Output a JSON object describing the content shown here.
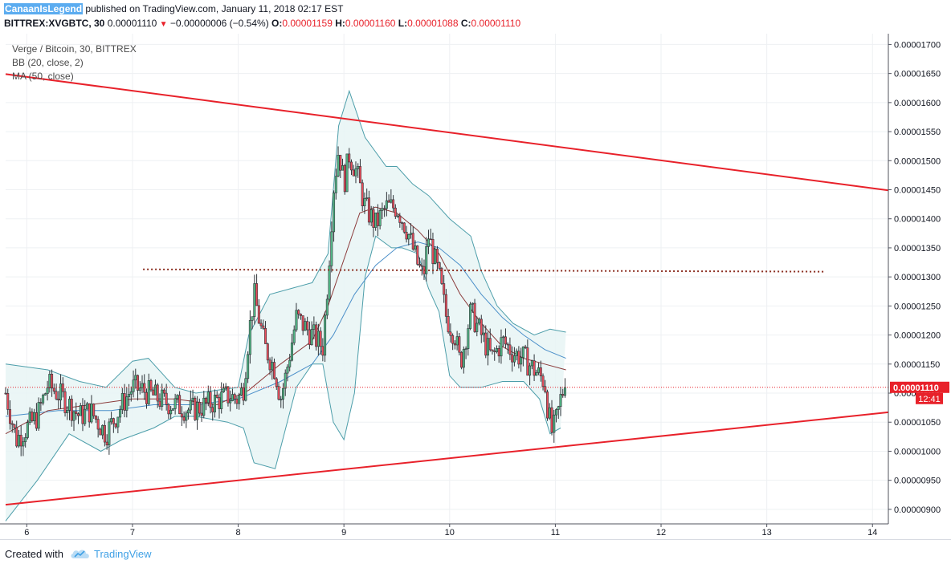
{
  "header": {
    "author": "CanaanIsLegend",
    "published": "published on TradingView.com, January 11, 2018 02:17 EST",
    "symbol": "BITTREX:XVGBTC, 30",
    "last": "0.00001110",
    "change_arrow": "▼",
    "change": "−0.00000006 (−0.54%)",
    "o_label": "O:",
    "o": "0.00001159",
    "h_label": "H:",
    "h": "0.00001160",
    "l_label": "L:",
    "l": "0.00001088",
    "c_label": "C:",
    "c": "0.00001110"
  },
  "legend": {
    "title": "Verge / Bitcoin, 30, BITTREX",
    "bb": "BB (20, close, 2)",
    "ma": "MA (50, close)"
  },
  "footer": {
    "created_with": "Created with",
    "brand": "TradingView",
    "brand_icon": "tradingview-cloud-icon"
  },
  "chart_data": {
    "type": "candlestick",
    "symbol": "BITTREX:XVGBTC",
    "interval": "30",
    "x_ticks": [
      "6",
      "7",
      "8",
      "9",
      "10",
      "11",
      "12",
      "13",
      "14"
    ],
    "x_range": [
      5.8,
      14.15
    ],
    "y_ticks": [
      "0.00000900",
      "0.00000950",
      "0.00001000",
      "0.00001050",
      "0.00001100",
      "0.00001150",
      "0.00001200",
      "0.00001250",
      "0.00001300",
      "0.00001350",
      "0.00001400",
      "0.00001450",
      "0.00001500",
      "0.00001550",
      "0.00001600",
      "0.00001650",
      "0.00001700"
    ],
    "y_range": [
      8.75e-06,
      1.713e-05
    ],
    "last_price_label": "0.00001110",
    "last_price": 1.11e-05,
    "countdown_label": "12:41",
    "colors": {
      "up": "#53b987",
      "down": "#eb4d5c",
      "bb_fill": "#e8f4f4",
      "bb_band": "#4d9eaa",
      "bb_basis": "#8b3a3a",
      "ma": "#4b8fc9",
      "trend": "#e8212a",
      "level": "#8b2e20"
    },
    "anchors": [
      [
        5.8,
        1.1e-05
      ],
      [
        5.9,
        1.02e-05
      ],
      [
        6.0,
        1.04e-05
      ],
      [
        6.1,
        1.06e-05
      ],
      [
        6.2,
        1.115e-05
      ],
      [
        6.35,
        1.09e-05
      ],
      [
        6.5,
        1.06e-05
      ],
      [
        6.6,
        1.07e-05
      ],
      [
        6.75,
        1.03e-05
      ],
      [
        6.9,
        1.08e-05
      ],
      [
        7.0,
        1.11e-05
      ],
      [
        7.1,
        1.105e-05
      ],
      [
        7.3,
        1.085e-05
      ],
      [
        7.4,
        1.08e-05
      ],
      [
        7.55,
        1.07e-05
      ],
      [
        7.7,
        1.08e-05
      ],
      [
        7.9,
        1.095e-05
      ],
      [
        8.0,
        1.09e-05
      ],
      [
        8.05,
        1.11e-05
      ],
      [
        8.1,
        1.2e-05
      ],
      [
        8.15,
        1.27e-05
      ],
      [
        8.25,
        1.18e-05
      ],
      [
        8.35,
        1.14e-05
      ],
      [
        8.4,
        1.09e-05
      ],
      [
        8.45,
        1.13e-05
      ],
      [
        8.55,
        1.23e-05
      ],
      [
        8.65,
        1.21e-05
      ],
      [
        8.75,
        1.19e-05
      ],
      [
        8.8,
        1.18e-05
      ],
      [
        8.85,
        1.3e-05
      ],
      [
        8.9,
        1.45e-05
      ],
      [
        8.95,
        1.52e-05
      ],
      [
        9.0,
        1.46e-05
      ],
      [
        9.05,
        1.51e-05
      ],
      [
        9.12,
        1.48e-05
      ],
      [
        9.2,
        1.42e-05
      ],
      [
        9.3,
        1.39e-05
      ],
      [
        9.4,
        1.42e-05
      ],
      [
        9.5,
        1.42e-05
      ],
      [
        9.6,
        1.38e-05
      ],
      [
        9.7,
        1.32e-05
      ],
      [
        9.75,
        1.3e-05
      ],
      [
        9.8,
        1.37e-05
      ],
      [
        9.9,
        1.3e-05
      ],
      [
        9.97,
        1.23e-05
      ],
      [
        10.05,
        1.2e-05
      ],
      [
        10.1,
        1.15e-05
      ],
      [
        10.2,
        1.24e-05
      ],
      [
        10.3,
        1.2e-05
      ],
      [
        10.4,
        1.16e-05
      ],
      [
        10.5,
        1.19e-05
      ],
      [
        10.6,
        1.17e-05
      ],
      [
        10.7,
        1.16e-05
      ],
      [
        10.8,
        1.14e-05
      ],
      [
        10.9,
        1.12e-05
      ],
      [
        10.93,
        1.07e-05
      ],
      [
        10.97,
        1.03e-05
      ],
      [
        11.02,
        1.06e-05
      ],
      [
        11.06,
        1.1e-05
      ],
      [
        11.1,
        1.11e-05
      ]
    ],
    "bb_upper": [
      [
        5.8,
        1.15e-05
      ],
      [
        6.2,
        1.14e-05
      ],
      [
        6.5,
        1.12e-05
      ],
      [
        6.75,
        1.11e-05
      ],
      [
        7.0,
        1.155e-05
      ],
      [
        7.15,
        1.16e-05
      ],
      [
        7.4,
        1.11e-05
      ],
      [
        7.6,
        1.1e-05
      ],
      [
        8.0,
        1.11e-05
      ],
      [
        8.1,
        1.2e-05
      ],
      [
        8.3,
        1.27e-05
      ],
      [
        8.5,
        1.28e-05
      ],
      [
        8.7,
        1.29e-05
      ],
      [
        8.85,
        1.34e-05
      ],
      [
        8.95,
        1.56e-05
      ],
      [
        9.05,
        1.62e-05
      ],
      [
        9.2,
        1.54e-05
      ],
      [
        9.4,
        1.49e-05
      ],
      [
        9.5,
        1.49e-05
      ],
      [
        9.65,
        1.46e-05
      ],
      [
        9.8,
        1.44e-05
      ],
      [
        10.0,
        1.4e-05
      ],
      [
        10.2,
        1.37e-05
      ],
      [
        10.3,
        1.31e-05
      ],
      [
        10.45,
        1.25e-05
      ],
      [
        10.6,
        1.22e-05
      ],
      [
        10.8,
        1.2e-05
      ],
      [
        10.95,
        1.21e-05
      ],
      [
        11.1,
        1.205e-05
      ]
    ],
    "bb_lower": [
      [
        5.8,
        8.8e-06
      ],
      [
        6.1,
        9.5e-06
      ],
      [
        6.4,
        1.03e-05
      ],
      [
        6.7,
        1e-05
      ],
      [
        6.9,
        1.02e-05
      ],
      [
        7.2,
        1.04e-05
      ],
      [
        7.4,
        1.06e-05
      ],
      [
        7.6,
        1.06e-05
      ],
      [
        7.9,
        1.05e-05
      ],
      [
        8.05,
        1.04e-05
      ],
      [
        8.15,
        9.8e-06
      ],
      [
        8.35,
        9.7e-06
      ],
      [
        8.55,
        1.11e-05
      ],
      [
        8.7,
        1.15e-05
      ],
      [
        8.8,
        1.15e-05
      ],
      [
        8.9,
        1.05e-05
      ],
      [
        9.0,
        1.02e-05
      ],
      [
        9.1,
        1.1e-05
      ],
      [
        9.2,
        1.3e-05
      ],
      [
        9.3,
        1.37e-05
      ],
      [
        9.45,
        1.35e-05
      ],
      [
        9.55,
        1.35e-05
      ],
      [
        9.7,
        1.34e-05
      ],
      [
        9.8,
        1.28e-05
      ],
      [
        9.9,
        1.24e-05
      ],
      [
        10.0,
        1.13e-05
      ],
      [
        10.1,
        1.11e-05
      ],
      [
        10.3,
        1.11e-05
      ],
      [
        10.5,
        1.12e-05
      ],
      [
        10.7,
        1.12e-05
      ],
      [
        10.85,
        1.09e-05
      ],
      [
        10.95,
        1.03e-05
      ],
      [
        11.05,
        1.04e-05
      ]
    ],
    "bb_basis": [
      [
        5.8,
        1.03e-05
      ],
      [
        6.2,
        1.07e-05
      ],
      [
        6.6,
        1.08e-05
      ],
      [
        7.0,
        1.09e-05
      ],
      [
        7.4,
        1.09e-05
      ],
      [
        7.8,
        1.08e-05
      ],
      [
        8.1,
        1.105e-05
      ],
      [
        8.4,
        1.15e-05
      ],
      [
        8.7,
        1.19e-05
      ],
      [
        8.85,
        1.25e-05
      ],
      [
        9.0,
        1.33e-05
      ],
      [
        9.15,
        1.41e-05
      ],
      [
        9.3,
        1.42e-05
      ],
      [
        9.5,
        1.41e-05
      ],
      [
        9.7,
        1.38e-05
      ],
      [
        9.9,
        1.34e-05
      ],
      [
        10.1,
        1.27e-05
      ],
      [
        10.3,
        1.22e-05
      ],
      [
        10.5,
        1.18e-05
      ],
      [
        10.7,
        1.16e-05
      ],
      [
        10.9,
        1.15e-05
      ],
      [
        11.1,
        1.14e-05
      ]
    ],
    "ma": [
      [
        5.8,
        1.06e-05
      ],
      [
        6.3,
        1.07e-05
      ],
      [
        6.8,
        1.07e-05
      ],
      [
        7.2,
        1.08e-05
      ],
      [
        7.6,
        1.08e-05
      ],
      [
        8.0,
        1.09e-05
      ],
      [
        8.4,
        1.12e-05
      ],
      [
        8.7,
        1.15e-05
      ],
      [
        8.9,
        1.2e-05
      ],
      [
        9.1,
        1.27e-05
      ],
      [
        9.3,
        1.32e-05
      ],
      [
        9.5,
        1.35e-05
      ],
      [
        9.7,
        1.36e-05
      ],
      [
        9.9,
        1.35e-05
      ],
      [
        10.1,
        1.32e-05
      ],
      [
        10.3,
        1.27e-05
      ],
      [
        10.5,
        1.23e-05
      ],
      [
        10.7,
        1.2e-05
      ],
      [
        10.9,
        1.175e-05
      ],
      [
        11.1,
        1.16e-05
      ]
    ],
    "trendlines": [
      {
        "style": "solid",
        "points": [
          [
            5.8,
            1.649e-05
          ],
          [
            14.15,
            1.449e-05
          ]
        ]
      },
      {
        "style": "solid",
        "points": [
          [
            5.8,
            9.08e-06
          ],
          [
            14.15,
            1.067e-05
          ]
        ]
      },
      {
        "style": "dotted",
        "points": [
          [
            7.1,
            1.313e-05
          ],
          [
            13.55,
            1.309e-05
          ]
        ]
      }
    ]
  }
}
